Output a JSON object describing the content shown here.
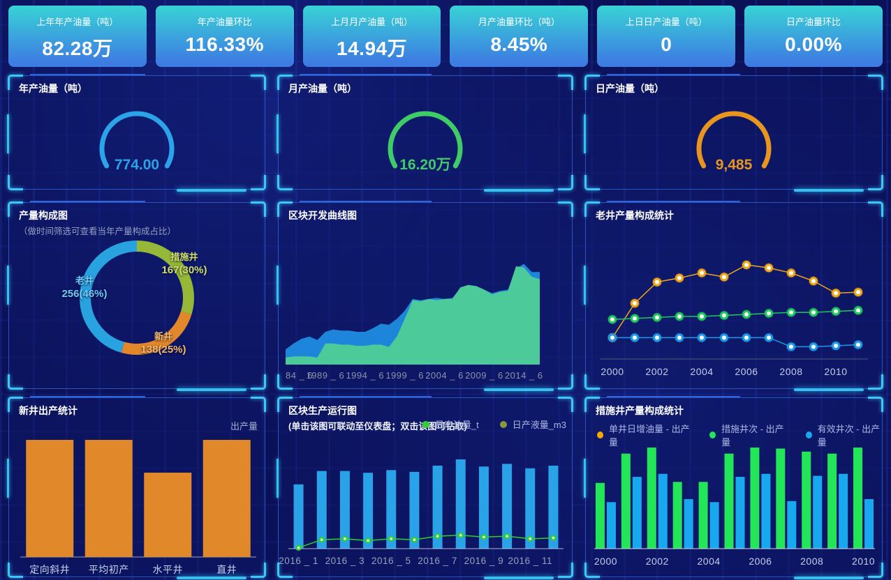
{
  "kpi_cards": [
    {
      "title": "上年年产油量（吨）",
      "value": "82.28万"
    },
    {
      "title": "年产油量环比",
      "value": "116.33%"
    },
    {
      "title": "上月月产油量（吨）",
      "value": "14.94万"
    },
    {
      "title": "月产油量环比（吨）",
      "value": "8.45%"
    },
    {
      "title": "上日日产油量（吨）",
      "value": "0"
    },
    {
      "title": "日产油量环比",
      "value": "0.00%"
    }
  ],
  "panels": {
    "annual_gauge": {
      "title": "年产油量（吨）"
    },
    "monthly_gauge": {
      "title": "月产油量（吨）"
    },
    "daily_gauge": {
      "title": "日产油量（吨）"
    },
    "production_mix": {
      "title": "产量构成图",
      "subtitle": "（做时间筛选可查看当年产量构成占比）"
    },
    "block_curve": {
      "title": "区块开发曲线图"
    },
    "old_well": {
      "title": "老井产量构成统计"
    },
    "new_well": {
      "title": "新井出产统计",
      "legend": "出产量"
    },
    "block_ops": {
      "title": "区块生产运行图",
      "subtitle": "(单击该图可联动至仪表盘；双击该图可钻取)"
    },
    "measure_well": {
      "title": "措施井产量构成统计"
    }
  },
  "colors": {
    "card_gradient_top": "#38d3d6",
    "card_gradient_bottom": "#3d7de2",
    "panel_border": "#2a55c0",
    "corner_accent": "#3ec6f8"
  },
  "chart_data": [
    {
      "key": "production_mix",
      "type": "pie",
      "title": "产量构成图",
      "slices": [
        {
          "name": "措施井",
          "value": 167,
          "label": "167(30%)",
          "color": "#96b838",
          "label_color": "#cfe069"
        },
        {
          "name": "新井",
          "value": 138,
          "label": "138(25%)",
          "color": "#e2882a",
          "label_color": "#f4b969"
        },
        {
          "name": "老井",
          "value": 256,
          "label": "256(46%)",
          "color": "#29a2e0",
          "label_color": "#70cbf4"
        }
      ]
    },
    {
      "key": "block_curve",
      "type": "area",
      "title": "区块开发曲线图",
      "x_tick_labels": [
        "84 _ 6",
        "1989 _ 6",
        "1994 _ 6",
        "1999 _ 6",
        "2004 _ 6",
        "2009 _ 6",
        "2014 _ 6"
      ],
      "x_tick_indices": [
        0,
        5,
        10,
        15,
        20,
        25,
        30
      ],
      "ylim": [
        0,
        100
      ],
      "series": [
        {
          "name": "blue-area",
          "color": "#1e86da",
          "opacity": 1,
          "values": [
            13,
            18,
            22,
            24,
            21,
            28,
            30,
            29,
            29,
            28,
            28,
            31,
            35,
            34,
            39,
            46,
            56,
            55,
            56,
            57,
            56,
            57,
            65,
            68,
            67,
            64,
            61,
            63,
            64,
            82,
            86,
            79,
            79
          ]
        },
        {
          "name": "green-area",
          "color": "#56d68e",
          "opacity": 0.85,
          "values": [
            6,
            7,
            7,
            7,
            6,
            18,
            18,
            17,
            17,
            16,
            16,
            17,
            17,
            15,
            24,
            39,
            55,
            54,
            56,
            55,
            56,
            56,
            66,
            68,
            67,
            64,
            60,
            62,
            63,
            84,
            83,
            75,
            73
          ]
        }
      ]
    },
    {
      "key": "old_well_stats",
      "type": "line",
      "title": "老井产量构成统计",
      "x": [
        2000,
        2001,
        2002,
        2003,
        2004,
        2005,
        2006,
        2007,
        2008,
        2009,
        2010,
        2011
      ],
      "x_tick_labels": [
        "2000",
        "2002",
        "2004",
        "2006",
        "2008",
        "2010"
      ],
      "x_tick_indices": [
        0,
        2,
        4,
        6,
        8,
        10
      ],
      "ylim": [
        0,
        100
      ],
      "series": [
        {
          "name": "yellow-line",
          "color": "#f0a818",
          "values": [
            17,
            51,
            72,
            76,
            81,
            77,
            89,
            86,
            81,
            73,
            61,
            62
          ]
        },
        {
          "name": "green-line",
          "color": "#1fc95c",
          "values": [
            35,
            36,
            37,
            38,
            38,
            39,
            40,
            41,
            42,
            42,
            43,
            44
          ]
        },
        {
          "name": "blue-line",
          "color": "#1e9ae8",
          "values": [
            17,
            17,
            17,
            17,
            17,
            17,
            17,
            17,
            8,
            8,
            9,
            10
          ]
        }
      ]
    },
    {
      "key": "new_well_output",
      "type": "bar",
      "title": "新井出产统计",
      "legend": [
        {
          "label": "出产量",
          "color": "#9fb0d0"
        }
      ],
      "categories": [
        "定向斜井",
        "平均初产",
        "水平井",
        "直井"
      ],
      "values": [
        100,
        100,
        72,
        100
      ],
      "color": "#e0882a",
      "ylim": [
        0,
        100
      ]
    },
    {
      "key": "block_ops",
      "type": "combo",
      "title": "区块生产运行图",
      "legend": [
        {
          "label": "日产油量_t",
          "color": "#2fd12f"
        },
        {
          "label": "日产液量_m3",
          "color": "#8a9a3a"
        }
      ],
      "categories": [
        "2016_1",
        "2016_2",
        "2016_3",
        "2016_4",
        "2016_5",
        "2016_6",
        "2016_7",
        "2016_8",
        "2016_9",
        "2016_10",
        "2016_11",
        "2016_12"
      ],
      "x_tick_labels": [
        "2016 _ 1",
        "2016 _ 3",
        "2016 _ 5",
        "2016 _ 7",
        "2016 _ 9",
        "2016 _ 11"
      ],
      "x_tick_indices": [
        0,
        2,
        4,
        6,
        8,
        10
      ],
      "ylim": [
        0,
        100
      ],
      "bars": {
        "color": "#29a2e8",
        "values": [
          72,
          87,
          87,
          85,
          88,
          86,
          93,
          100,
          92,
          95,
          90,
          93
        ]
      },
      "line": {
        "color": "#2fd12f",
        "values": [
          1,
          10,
          11,
          9,
          11,
          10,
          14,
          15,
          13,
          14,
          11,
          12
        ]
      }
    },
    {
      "key": "measure_well_stats",
      "type": "grouped_bar",
      "title": "措施井产量构成统计",
      "legend": [
        {
          "label": "单井日增油量 - 出产量",
          "color": "#f5a800"
        },
        {
          "label": "措施井次 - 出产量",
          "color": "#22e658"
        },
        {
          "label": "有效井次 - 出产量",
          "color": "#18a8f0"
        }
      ],
      "categories": [
        "2000",
        "2001",
        "2002",
        "2003",
        "2004",
        "2005",
        "2006",
        "2007",
        "2008",
        "2009",
        "2010"
      ],
      "x_tick_labels": [
        "2000",
        "2002",
        "2004",
        "2006",
        "2008",
        "2010"
      ],
      "x_tick_indices": [
        0,
        2,
        4,
        6,
        8,
        10
      ],
      "ylim": [
        0,
        100
      ],
      "series": [
        {
          "name": "措施井次 - 出产量",
          "color": "#22e658",
          "values": [
            65,
            94,
            100,
            66,
            66,
            94,
            100,
            99,
            96,
            94,
            100
          ]
        },
        {
          "name": "有效井次 - 出产量",
          "color": "#18a8f0",
          "values": [
            46,
            71,
            74,
            49,
            46,
            71,
            74,
            47,
            72,
            74,
            49
          ]
        }
      ]
    },
    {
      "key": "annual_gauge",
      "type": "gauge",
      "title": "年产油量（吨）",
      "value": "774.00",
      "color": "#2aa3e8"
    },
    {
      "key": "monthly_gauge",
      "type": "gauge",
      "title": "月产油量（吨）",
      "value": "16.20万",
      "color": "#3fcc66"
    },
    {
      "key": "daily_gauge",
      "type": "gauge",
      "title": "日产油量（吨）",
      "value": "9,485",
      "color": "#e8951f"
    }
  ]
}
